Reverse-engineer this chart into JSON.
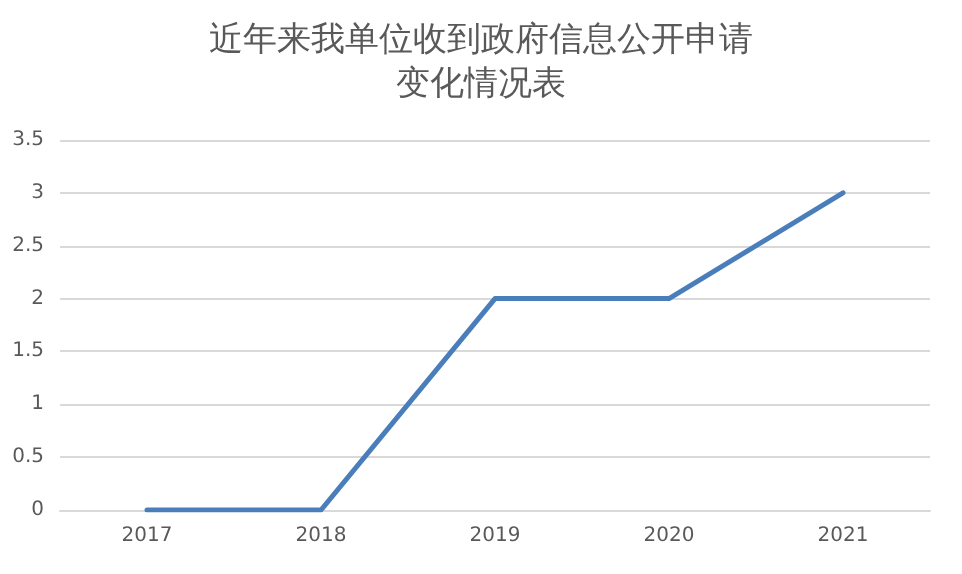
{
  "chart_data": {
    "type": "line",
    "title": "近年来我单位收到政府信息公开申请变化情况表",
    "categories": [
      "2017",
      "2018",
      "2019",
      "2020",
      "2021"
    ],
    "series": [
      {
        "color": "#4a7ebb",
        "values": [
          0,
          0,
          2,
          2,
          3
        ]
      }
    ],
    "ylim": [
      0,
      3.5
    ],
    "yticks": [
      0,
      0.5,
      1,
      1.5,
      2,
      2.5,
      3,
      3.5
    ],
    "grid": "y",
    "marker": "none",
    "line_style": "solid"
  }
}
